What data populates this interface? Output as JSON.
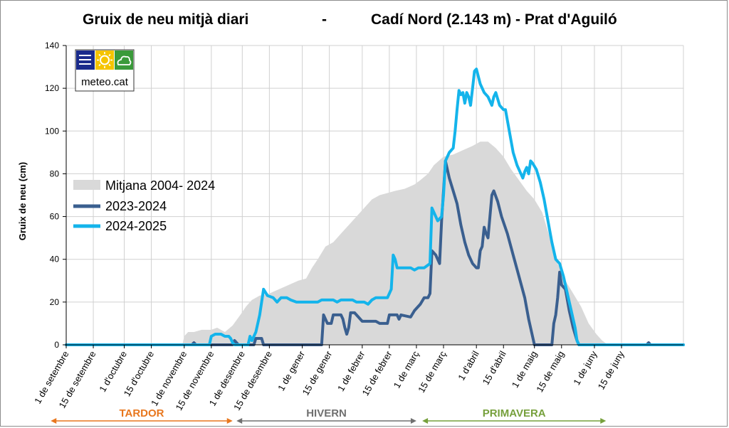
{
  "chart_data": {
    "type": "area",
    "title_left": "Gruix de neu mitjà diari",
    "title_sep": "-",
    "title_right": "Cadí Nord (2.143 m) - Prat d'Aguiló",
    "ylabel": "Gruix de neu (cm)",
    "ylim": [
      0,
      140
    ],
    "yticks": [
      0,
      20,
      40,
      60,
      80,
      100,
      120,
      140
    ],
    "grid": true,
    "x_start": "1 de setembre",
    "x_days": 319,
    "xticks": [
      {
        "day": 0,
        "label": "1 de setembre"
      },
      {
        "day": 14,
        "label": "15 de setembre"
      },
      {
        "day": 30,
        "label": "1 d'octubre"
      },
      {
        "day": 44,
        "label": "15 d'octubre"
      },
      {
        "day": 61,
        "label": "1 de novembre"
      },
      {
        "day": 75,
        "label": "15 de novembre"
      },
      {
        "day": 91,
        "label": "1 de desembre"
      },
      {
        "day": 105,
        "label": "15 de desembre"
      },
      {
        "day": 122,
        "label": "1 de gener"
      },
      {
        "day": 136,
        "label": "15 de gener"
      },
      {
        "day": 153,
        "label": "1 de febrer"
      },
      {
        "day": 167,
        "label": "15 de febrer"
      },
      {
        "day": 181,
        "label": "1 de març"
      },
      {
        "day": 195,
        "label": "15 de març"
      },
      {
        "day": 212,
        "label": "1 d'abril"
      },
      {
        "day": 226,
        "label": "15 d'abril"
      },
      {
        "day": 242,
        "label": "1 de maig"
      },
      {
        "day": 256,
        "label": "15 de maig"
      },
      {
        "day": 273,
        "label": "1 de juny"
      },
      {
        "day": 287,
        "label": "15 de juny"
      }
    ],
    "legend_placement": "left",
    "series": [
      {
        "name": "Mitjana  2004- 2024",
        "kind": "area",
        "color": "#d9d9d9",
        "points": [
          [
            0,
            0
          ],
          [
            60,
            0
          ],
          [
            61,
            4
          ],
          [
            63,
            6
          ],
          [
            66,
            6
          ],
          [
            70,
            7
          ],
          [
            75,
            7
          ],
          [
            78,
            8
          ],
          [
            82,
            6
          ],
          [
            86,
            9
          ],
          [
            90,
            14
          ],
          [
            93,
            18
          ],
          [
            96,
            21
          ],
          [
            100,
            23
          ],
          [
            105,
            24
          ],
          [
            110,
            26
          ],
          [
            115,
            28
          ],
          [
            120,
            30
          ],
          [
            124,
            31
          ],
          [
            127,
            36
          ],
          [
            130,
            40
          ],
          [
            134,
            46
          ],
          [
            138,
            48
          ],
          [
            142,
            52
          ],
          [
            146,
            56
          ],
          [
            150,
            60
          ],
          [
            154,
            64
          ],
          [
            158,
            68
          ],
          [
            162,
            70
          ],
          [
            166,
            71
          ],
          [
            170,
            72
          ],
          [
            175,
            73
          ],
          [
            180,
            75
          ],
          [
            183,
            77
          ],
          [
            187,
            80
          ],
          [
            190,
            84
          ],
          [
            195,
            88
          ],
          [
            200,
            89
          ],
          [
            205,
            91
          ],
          [
            210,
            93
          ],
          [
            214,
            95
          ],
          [
            218,
            95
          ],
          [
            222,
            92
          ],
          [
            226,
            88
          ],
          [
            230,
            82
          ],
          [
            234,
            77
          ],
          [
            238,
            72
          ],
          [
            242,
            68
          ],
          [
            246,
            62
          ],
          [
            250,
            50
          ],
          [
            254,
            38
          ],
          [
            258,
            30
          ],
          [
            262,
            24
          ],
          [
            266,
            18
          ],
          [
            270,
            10
          ],
          [
            274,
            5
          ],
          [
            277,
            2
          ],
          [
            280,
            0
          ],
          [
            319,
            0
          ]
        ]
      },
      {
        "name": "2023-2024",
        "kind": "line",
        "color": "#3a5f8f",
        "points": [
          [
            0,
            0
          ],
          [
            65,
            0
          ],
          [
            66,
            1
          ],
          [
            67,
            0
          ],
          [
            86,
            0
          ],
          [
            87,
            2
          ],
          [
            88,
            1
          ],
          [
            89,
            0
          ],
          [
            97,
            0
          ],
          [
            98,
            3
          ],
          [
            101,
            3
          ],
          [
            102,
            0
          ],
          [
            132,
            0
          ],
          [
            133,
            14
          ],
          [
            135,
            10
          ],
          [
            137,
            10
          ],
          [
            138,
            14
          ],
          [
            142,
            14
          ],
          [
            143,
            12
          ],
          [
            144,
            8
          ],
          [
            145,
            5
          ],
          [
            146,
            8
          ],
          [
            147,
            15
          ],
          [
            149,
            15
          ],
          [
            151,
            13
          ],
          [
            153,
            11
          ],
          [
            160,
            11
          ],
          [
            162,
            10
          ],
          [
            166,
            10
          ],
          [
            167,
            14
          ],
          [
            171,
            14
          ],
          [
            172,
            12
          ],
          [
            173,
            14
          ],
          [
            178,
            13
          ],
          [
            180,
            16
          ],
          [
            183,
            19
          ],
          [
            185,
            22
          ],
          [
            187,
            22
          ],
          [
            188,
            24
          ],
          [
            189,
            44
          ],
          [
            191,
            42
          ],
          [
            193,
            38
          ],
          [
            194,
            58
          ],
          [
            196,
            86
          ],
          [
            198,
            78
          ],
          [
            200,
            72
          ],
          [
            202,
            66
          ],
          [
            204,
            56
          ],
          [
            206,
            48
          ],
          [
            208,
            42
          ],
          [
            210,
            38
          ],
          [
            212,
            36
          ],
          [
            213,
            36
          ],
          [
            214,
            44
          ],
          [
            215,
            46
          ],
          [
            216,
            55
          ],
          [
            217,
            52
          ],
          [
            218,
            50
          ],
          [
            219,
            60
          ],
          [
            220,
            70
          ],
          [
            221,
            72
          ],
          [
            223,
            67
          ],
          [
            225,
            60
          ],
          [
            228,
            52
          ],
          [
            231,
            42
          ],
          [
            234,
            32
          ],
          [
            237,
            22
          ],
          [
            239,
            12
          ],
          [
            241,
            4
          ],
          [
            242,
            0
          ],
          [
            251,
            0
          ],
          [
            252,
            10
          ],
          [
            253,
            14
          ],
          [
            254,
            22
          ],
          [
            255,
            34
          ],
          [
            256,
            28
          ],
          [
            258,
            26
          ],
          [
            260,
            16
          ],
          [
            262,
            8
          ],
          [
            264,
            2
          ],
          [
            265,
            0
          ],
          [
            300,
            0
          ],
          [
            301,
            1
          ],
          [
            302,
            0
          ],
          [
            319,
            0
          ]
        ]
      },
      {
        "name": "2024-2025",
        "kind": "line",
        "color": "#14b4eb",
        "points": [
          [
            0,
            0
          ],
          [
            74,
            0
          ],
          [
            75,
            4
          ],
          [
            77,
            5
          ],
          [
            80,
            5
          ],
          [
            82,
            4
          ],
          [
            84,
            4
          ],
          [
            85,
            3
          ],
          [
            86,
            1
          ],
          [
            87,
            0
          ],
          [
            94,
            0
          ],
          [
            95,
            4
          ],
          [
            96,
            2
          ],
          [
            98,
            6
          ],
          [
            100,
            14
          ],
          [
            102,
            26
          ],
          [
            104,
            23
          ],
          [
            107,
            22
          ],
          [
            109,
            20
          ],
          [
            111,
            22
          ],
          [
            114,
            22
          ],
          [
            116,
            21
          ],
          [
            119,
            20
          ],
          [
            130,
            20
          ],
          [
            132,
            21
          ],
          [
            138,
            21
          ],
          [
            140,
            20
          ],
          [
            142,
            21
          ],
          [
            148,
            21
          ],
          [
            150,
            20
          ],
          [
            154,
            20
          ],
          [
            156,
            19
          ],
          [
            158,
            21
          ],
          [
            160,
            22
          ],
          [
            166,
            22
          ],
          [
            168,
            26
          ],
          [
            169,
            42
          ],
          [
            170,
            40
          ],
          [
            171,
            36
          ],
          [
            178,
            36
          ],
          [
            180,
            35
          ],
          [
            182,
            36
          ],
          [
            185,
            36
          ],
          [
            188,
            38
          ],
          [
            189,
            64
          ],
          [
            190,
            62
          ],
          [
            192,
            58
          ],
          [
            194,
            60
          ],
          [
            195,
            70
          ],
          [
            196,
            86
          ],
          [
            198,
            90
          ],
          [
            200,
            92
          ],
          [
            201,
            100
          ],
          [
            202,
            110
          ],
          [
            203,
            119
          ],
          [
            204,
            117
          ],
          [
            205,
            118
          ],
          [
            206,
            113
          ],
          [
            207,
            118
          ],
          [
            208,
            116
          ],
          [
            209,
            112
          ],
          [
            210,
            120
          ],
          [
            211,
            128
          ],
          [
            212,
            129
          ],
          [
            214,
            122
          ],
          [
            216,
            118
          ],
          [
            218,
            116
          ],
          [
            220,
            112
          ],
          [
            221,
            116
          ],
          [
            222,
            118
          ],
          [
            224,
            112
          ],
          [
            226,
            110
          ],
          [
            227,
            110
          ],
          [
            229,
            100
          ],
          [
            231,
            90
          ],
          [
            233,
            84
          ],
          [
            235,
            80
          ],
          [
            236,
            78
          ],
          [
            237,
            81
          ],
          [
            238,
            83
          ],
          [
            239,
            80
          ],
          [
            240,
            86
          ],
          [
            241,
            85
          ],
          [
            243,
            82
          ],
          [
            245,
            76
          ],
          [
            247,
            68
          ],
          [
            249,
            58
          ],
          [
            251,
            48
          ],
          [
            253,
            40
          ],
          [
            255,
            38
          ],
          [
            257,
            32
          ],
          [
            259,
            24
          ],
          [
            261,
            16
          ],
          [
            263,
            8
          ],
          [
            264,
            2
          ],
          [
            265,
            0
          ],
          [
            319,
            0
          ]
        ]
      }
    ],
    "seasons": [
      {
        "label": "TARDOR",
        "color": "#e8771e",
        "from_day": -8,
        "to_day": 86
      },
      {
        "label": "HIVERN",
        "color": "#707070",
        "from_day": 88,
        "to_day": 181
      },
      {
        "label": "PRIMAVERA",
        "color": "#76a03c",
        "from_day": 184,
        "to_day": 279
      }
    ]
  },
  "logo": {
    "text": "meteo.cat",
    "colors": [
      "#1a2b8c",
      "#f5c400",
      "#3a9a3a"
    ],
    "icons": [
      "fog-icon",
      "sun-icon",
      "cloud-icon"
    ]
  }
}
